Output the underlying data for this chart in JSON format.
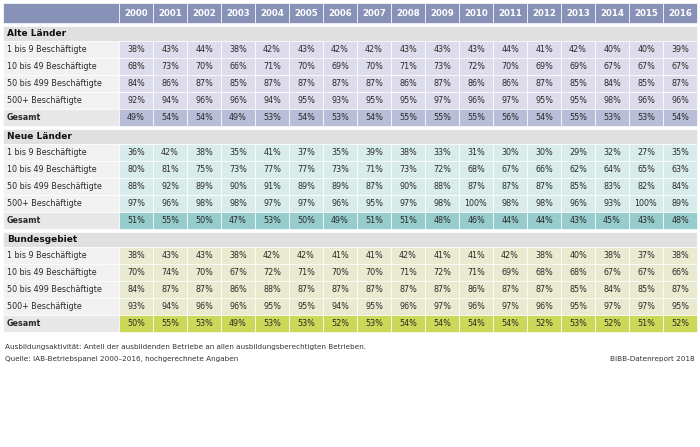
{
  "years": [
    "2000",
    "2001",
    "2002",
    "2003",
    "2004",
    "2005",
    "2006",
    "2007",
    "2008",
    "2009",
    "2010",
    "2011",
    "2012",
    "2013",
    "2014",
    "2015",
    "2016"
  ],
  "sections": [
    {
      "name": "Alte Länder",
      "rows": [
        {
          "label": "1 bis 9 Beschäftigte",
          "values": [
            38,
            43,
            44,
            38,
            42,
            43,
            42,
            42,
            43,
            43,
            43,
            44,
            41,
            42,
            40,
            40,
            39
          ]
        },
        {
          "label": "10 bis 49 Beschäftigte",
          "values": [
            68,
            73,
            70,
            66,
            71,
            70,
            69,
            70,
            71,
            73,
            72,
            70,
            69,
            69,
            67,
            67,
            67
          ]
        },
        {
          "label": "50 bis 499 Beschäftigte",
          "values": [
            84,
            86,
            87,
            85,
            87,
            87,
            87,
            87,
            86,
            87,
            86,
            86,
            87,
            85,
            84,
            85,
            87
          ]
        },
        {
          "label": "500+ Beschäftigte",
          "values": [
            92,
            94,
            96,
            96,
            94,
            95,
            93,
            95,
            95,
            97,
            96,
            97,
            95,
            95,
            98,
            96,
            96
          ]
        }
      ],
      "gesamt": [
        49,
        54,
        54,
        49,
        53,
        54,
        53,
        54,
        55,
        55,
        55,
        56,
        54,
        55,
        53,
        53,
        54
      ],
      "row_bg": "#dcdcec",
      "gesamt_bg": "#b8bdd8"
    },
    {
      "name": "Neue Länder",
      "rows": [
        {
          "label": "1 bis 9 Beschäftigte",
          "values": [
            36,
            42,
            38,
            35,
            41,
            37,
            35,
            39,
            38,
            33,
            31,
            30,
            30,
            29,
            32,
            27,
            35
          ]
        },
        {
          "label": "10 bis 49 Beschäftigte",
          "values": [
            80,
            81,
            75,
            73,
            77,
            77,
            73,
            71,
            73,
            72,
            68,
            67,
            66,
            62,
            64,
            65,
            63
          ]
        },
        {
          "label": "50 bis 499 Beschäftigte",
          "values": [
            88,
            92,
            89,
            90,
            91,
            89,
            89,
            87,
            90,
            88,
            87,
            87,
            87,
            85,
            83,
            82,
            84
          ]
        },
        {
          "label": "500+ Beschäftigte",
          "values": [
            97,
            96,
            98,
            98,
            97,
            97,
            96,
            95,
            97,
            98,
            100,
            98,
            98,
            96,
            93,
            100,
            89
          ]
        }
      ],
      "gesamt": [
        51,
        55,
        50,
        47,
        53,
        50,
        49,
        51,
        51,
        48,
        46,
        44,
        44,
        43,
        45,
        43,
        48
      ],
      "row_bg": "#d8ecec",
      "gesamt_bg": "#96cccc"
    },
    {
      "name": "Bundesgebiet",
      "rows": [
        {
          "label": "1 bis 9 Beschäftigte",
          "values": [
            38,
            43,
            43,
            38,
            42,
            42,
            41,
            41,
            42,
            41,
            41,
            42,
            38,
            40,
            38,
            37,
            38
          ]
        },
        {
          "label": "10 bis 49 Beschäftigte",
          "values": [
            70,
            74,
            70,
            67,
            72,
            71,
            70,
            70,
            71,
            72,
            71,
            69,
            68,
            68,
            67,
            67,
            66
          ]
        },
        {
          "label": "50 bis 499 Beschäftigte",
          "values": [
            84,
            87,
            87,
            86,
            88,
            87,
            87,
            87,
            87,
            87,
            86,
            87,
            87,
            85,
            84,
            85,
            87
          ]
        },
        {
          "label": "500+ Beschäftigte",
          "values": [
            93,
            94,
            96,
            96,
            95,
            95,
            94,
            95,
            96,
            97,
            96,
            97,
            96,
            95,
            97,
            97,
            95
          ]
        }
      ],
      "gesamt": [
        50,
        55,
        53,
        49,
        53,
        53,
        52,
        53,
        54,
        54,
        54,
        54,
        52,
        53,
        52,
        51,
        52
      ],
      "row_bg": "#eaead0",
      "gesamt_bg": "#ccd858"
    }
  ],
  "header_bg": "#8892b8",
  "header_text": "#ffffff",
  "section_bg": "#e0e0e0",
  "label_bg": "#f2f2f2",
  "gesamt_label_bg": "#e8e8e8",
  "footnote": "Ausbildungsaktivität: Anteil der ausbildenden Betriebe an allen ausbildungsberechtigten Betrieben.",
  "source": "Quelle: IAB-Betriebspanel 2000–2016, hochgerechnete Angaben",
  "bibb": "BIBB-Datenreport 2018",
  "text_color": "#2a2a2a",
  "header_fs": 6.2,
  "data_fs": 5.8,
  "label_fs": 5.8,
  "section_fs": 6.5,
  "footnote_fs": 5.2
}
